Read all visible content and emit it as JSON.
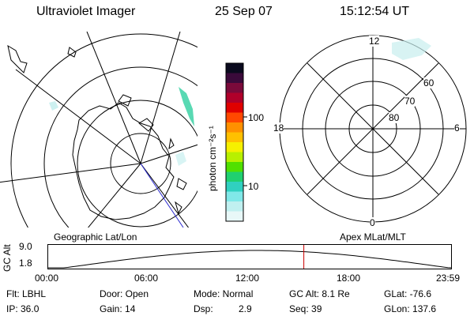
{
  "header": {
    "instrument": "Ultraviolet Imager",
    "date": "25 Sep 07",
    "time": "15:12:54 UT"
  },
  "colorbar": {
    "unit_label": "photon cm⁻²s⁻¹",
    "ticks": [
      "100",
      "10"
    ],
    "colors": [
      "#0a0a1e",
      "#3a0a3a",
      "#7a0a3a",
      "#b0002a",
      "#e00000",
      "#ff4800",
      "#ff9000",
      "#ffc000",
      "#f6f000",
      "#b8f000",
      "#50e000",
      "#20d070",
      "#30d0c0",
      "#80e8e8",
      "#c0f0f0",
      "#e8f8f8"
    ]
  },
  "left_map": {
    "label": "Geographic Lat/Lon"
  },
  "right_map": {
    "label": "Apex MLat/MLT",
    "mlt_labels": {
      "top": "12",
      "left": "18",
      "right": "6",
      "bottom": "0"
    },
    "mlat_labels": [
      "60",
      "70",
      "80"
    ]
  },
  "altitude_plot": {
    "ylabel": "GC Alt",
    "yticks": [
      "9.0",
      "1.8"
    ],
    "xticks": [
      "00:00",
      "06:00",
      "12:00",
      "18:00",
      "23:59"
    ],
    "marker_time_hours": 15.215,
    "marker_color": "#cc0000"
  },
  "status": {
    "filter": "Flt: LBHL",
    "ip": "IP: 36.0",
    "door": "Door: Open",
    "gain": "Gain: 14",
    "mode": "Mode: Normal",
    "dsp_label": "Dsp:",
    "dsp_value": "2.9",
    "gc_alt": "GC Alt: 8.1 Re",
    "seq": "Seq: 39",
    "glat": "GLat: -76.6",
    "glon": "GLon: 137.6"
  }
}
